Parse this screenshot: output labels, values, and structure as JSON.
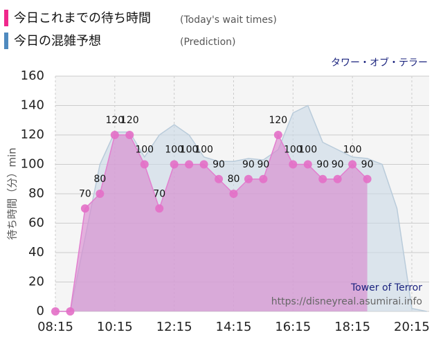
{
  "chart_data": {
    "type": "area",
    "subtitle": "タワー・オブ・テラー",
    "y_label": "待ち時間（分）min",
    "watermark": "Tower of Terror",
    "source": "https://disneyreal.asumirai.info",
    "xlim": [
      "08:15",
      "20:50"
    ],
    "xticks": [
      "08:15",
      "10:15",
      "12:15",
      "14:15",
      "16:15",
      "18:15",
      "20:15"
    ],
    "ylim": [
      0,
      160
    ],
    "yticks": [
      0,
      20,
      40,
      60,
      80,
      100,
      120,
      140,
      160
    ],
    "grid": true,
    "series": [
      {
        "name": "今日の混雑予想",
        "name_en": "(Prediction)",
        "color": "#4f8abf",
        "fill": "#c9d9e6",
        "x": [
          "08:15",
          "08:45",
          "09:15",
          "09:45",
          "10:15",
          "10:45",
          "11:15",
          "11:45",
          "12:15",
          "12:45",
          "13:15",
          "13:45",
          "14:15",
          "14:45",
          "15:15",
          "15:45",
          "16:15",
          "16:45",
          "17:15",
          "17:45",
          "18:15",
          "18:45",
          "19:15",
          "19:45",
          "20:15",
          "20:45"
        ],
        "values": [
          0,
          0,
          50,
          100,
          122,
          122,
          105,
          120,
          127,
          120,
          105,
          102,
          102,
          104,
          103,
          110,
          135,
          140,
          115,
          110,
          105,
          104,
          100,
          70,
          2,
          0
        ]
      },
      {
        "name": "今日これまでの待ち時間",
        "name_en": "(Today's wait times)",
        "color": "#f0288c",
        "fill": "#d98ad0",
        "x": [
          "08:15",
          "08:45",
          "09:15",
          "09:45",
          "10:15",
          "10:45",
          "11:15",
          "11:45",
          "12:15",
          "12:45",
          "13:15",
          "13:45",
          "14:15",
          "14:45",
          "15:15",
          "15:45",
          "16:15",
          "16:45",
          "17:15",
          "17:45",
          "18:15",
          "18:45"
        ],
        "values": [
          0,
          0,
          70,
          80,
          120,
          120,
          100,
          70,
          100,
          100,
          100,
          90,
          80,
          90,
          90,
          120,
          100,
          100,
          90,
          90,
          100,
          90
        ],
        "value_labels": [
          null,
          null,
          "70",
          "80",
          "120",
          "120",
          "100",
          "70",
          "100",
          "100",
          "100",
          "90",
          "80",
          "90",
          "90",
          "120",
          "100",
          "100",
          "90",
          "90",
          "100",
          "90"
        ]
      }
    ]
  }
}
